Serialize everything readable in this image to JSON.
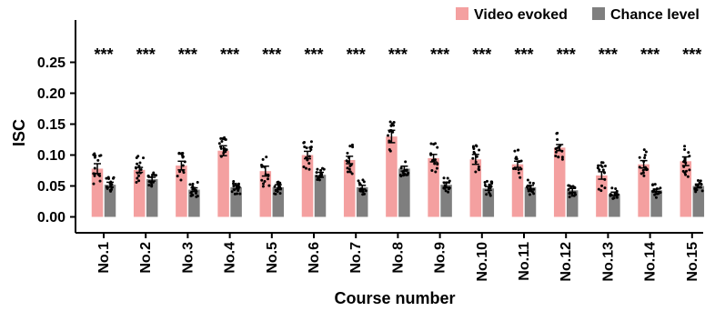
{
  "chart_data": {
    "type": "bar",
    "xlabel": "Course number",
    "ylabel": "ISC",
    "ylim": [
      -0.01,
      0.25
    ],
    "yticks": [
      "0.00",
      "0.05",
      "0.10",
      "0.15",
      "0.20",
      "0.25"
    ],
    "categories": [
      "No.1",
      "No.2",
      "No.3",
      "No.4",
      "No.5",
      "No.6",
      "No.7",
      "No.8",
      "No.9",
      "No.10",
      "No.11",
      "No.12",
      "No.13",
      "No.14",
      "No.15"
    ],
    "significance": [
      "***",
      "***",
      "***",
      "***",
      "***",
      "***",
      "***",
      "***",
      "***",
      "***",
      "***",
      "***",
      "***",
      "***",
      "***"
    ],
    "legend_position": "top-right",
    "series": [
      {
        "name": "Video evoked",
        "color": "#f4a0a0",
        "values": [
          0.078,
          0.076,
          0.083,
          0.107,
          0.074,
          0.1,
          0.092,
          0.13,
          0.095,
          0.093,
          0.085,
          0.112,
          0.067,
          0.085,
          0.09
        ],
        "errors": [
          0.008,
          0.004,
          0.007,
          0.008,
          0.008,
          0.006,
          0.006,
          0.01,
          0.006,
          0.008,
          0.005,
          0.005,
          0.006,
          0.006,
          0.007
        ]
      },
      {
        "name": "Chance level",
        "color": "#7f7f7f",
        "values": [
          0.052,
          0.061,
          0.044,
          0.048,
          0.048,
          0.068,
          0.048,
          0.078,
          0.052,
          0.046,
          0.048,
          0.043,
          0.037,
          0.043,
          0.05
        ],
        "errors": [
          0.004,
          0.003,
          0.003,
          0.003,
          0.004,
          0.004,
          0.003,
          0.004,
          0.004,
          0.003,
          0.003,
          0.003,
          0.003,
          0.002,
          0.003
        ]
      }
    ]
  }
}
